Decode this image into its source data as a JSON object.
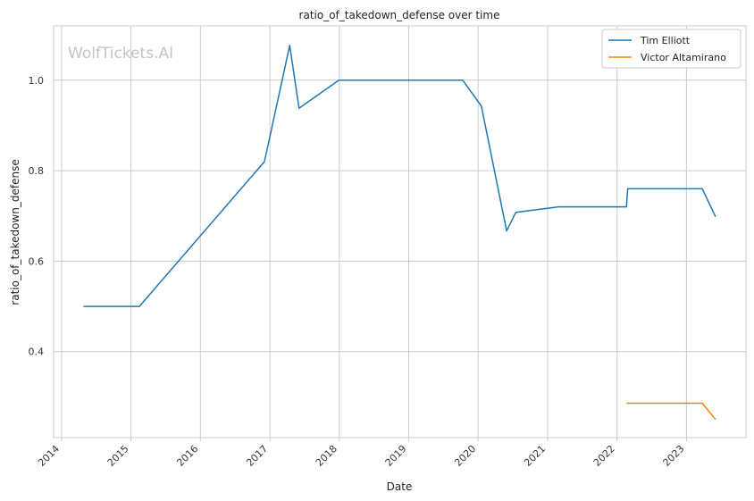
{
  "chart_data": {
    "type": "line",
    "title": "ratio_of_takedown_defense over time",
    "xlabel": "Date",
    "ylabel": "ratio_of_takedown_defense",
    "watermark": "WolfTickets.AI",
    "grid": true,
    "legend_position": "top-right",
    "xlim": [
      "2013-11-20",
      "2023-11-10"
    ],
    "ylim": [
      0.21,
      1.12
    ],
    "x_ticks": [
      "2014-01-01",
      "2015-01-01",
      "2016-01-01",
      "2017-01-01",
      "2018-01-01",
      "2019-01-01",
      "2020-01-01",
      "2021-01-01",
      "2022-01-01",
      "2023-01-01"
    ],
    "x_tick_labels": [
      "2014",
      "2015",
      "2016",
      "2017",
      "2018",
      "2019",
      "2020",
      "2021",
      "2022",
      "2023"
    ],
    "y_ticks": [
      0.4,
      0.6,
      0.8,
      1.0
    ],
    "y_tick_labels": [
      "0.4",
      "0.6",
      "0.8",
      "1.0"
    ],
    "series": [
      {
        "name": "Tim Elliott",
        "color": "#1f77b4",
        "points": [
          {
            "x": "2014-04-26",
            "y": 0.5
          },
          {
            "x": "2015-02-14",
            "y": 0.5
          },
          {
            "x": "2016-12-03",
            "y": 0.82
          },
          {
            "x": "2017-04-15",
            "y": 1.077
          },
          {
            "x": "2017-06-03",
            "y": 0.938
          },
          {
            "x": "2017-12-30",
            "y": 1.0
          },
          {
            "x": "2019-10-12",
            "y": 1.0
          },
          {
            "x": "2020-01-18",
            "y": 0.943
          },
          {
            "x": "2020-05-30",
            "y": 0.667
          },
          {
            "x": "2020-07-18",
            "y": 0.708
          },
          {
            "x": "2021-02-27",
            "y": 0.72
          },
          {
            "x": "2022-02-19",
            "y": 0.72
          },
          {
            "x": "2022-02-26",
            "y": 0.76
          },
          {
            "x": "2023-03-25",
            "y": 0.76
          },
          {
            "x": "2023-06-03",
            "y": 0.698
          }
        ]
      },
      {
        "name": "Victor Altamirano",
        "color": "#ff7f0e",
        "points": [
          {
            "x": "2022-02-19",
            "y": 0.286
          },
          {
            "x": "2023-03-25",
            "y": 0.286
          },
          {
            "x": "2023-06-03",
            "y": 0.25
          }
        ]
      }
    ]
  }
}
